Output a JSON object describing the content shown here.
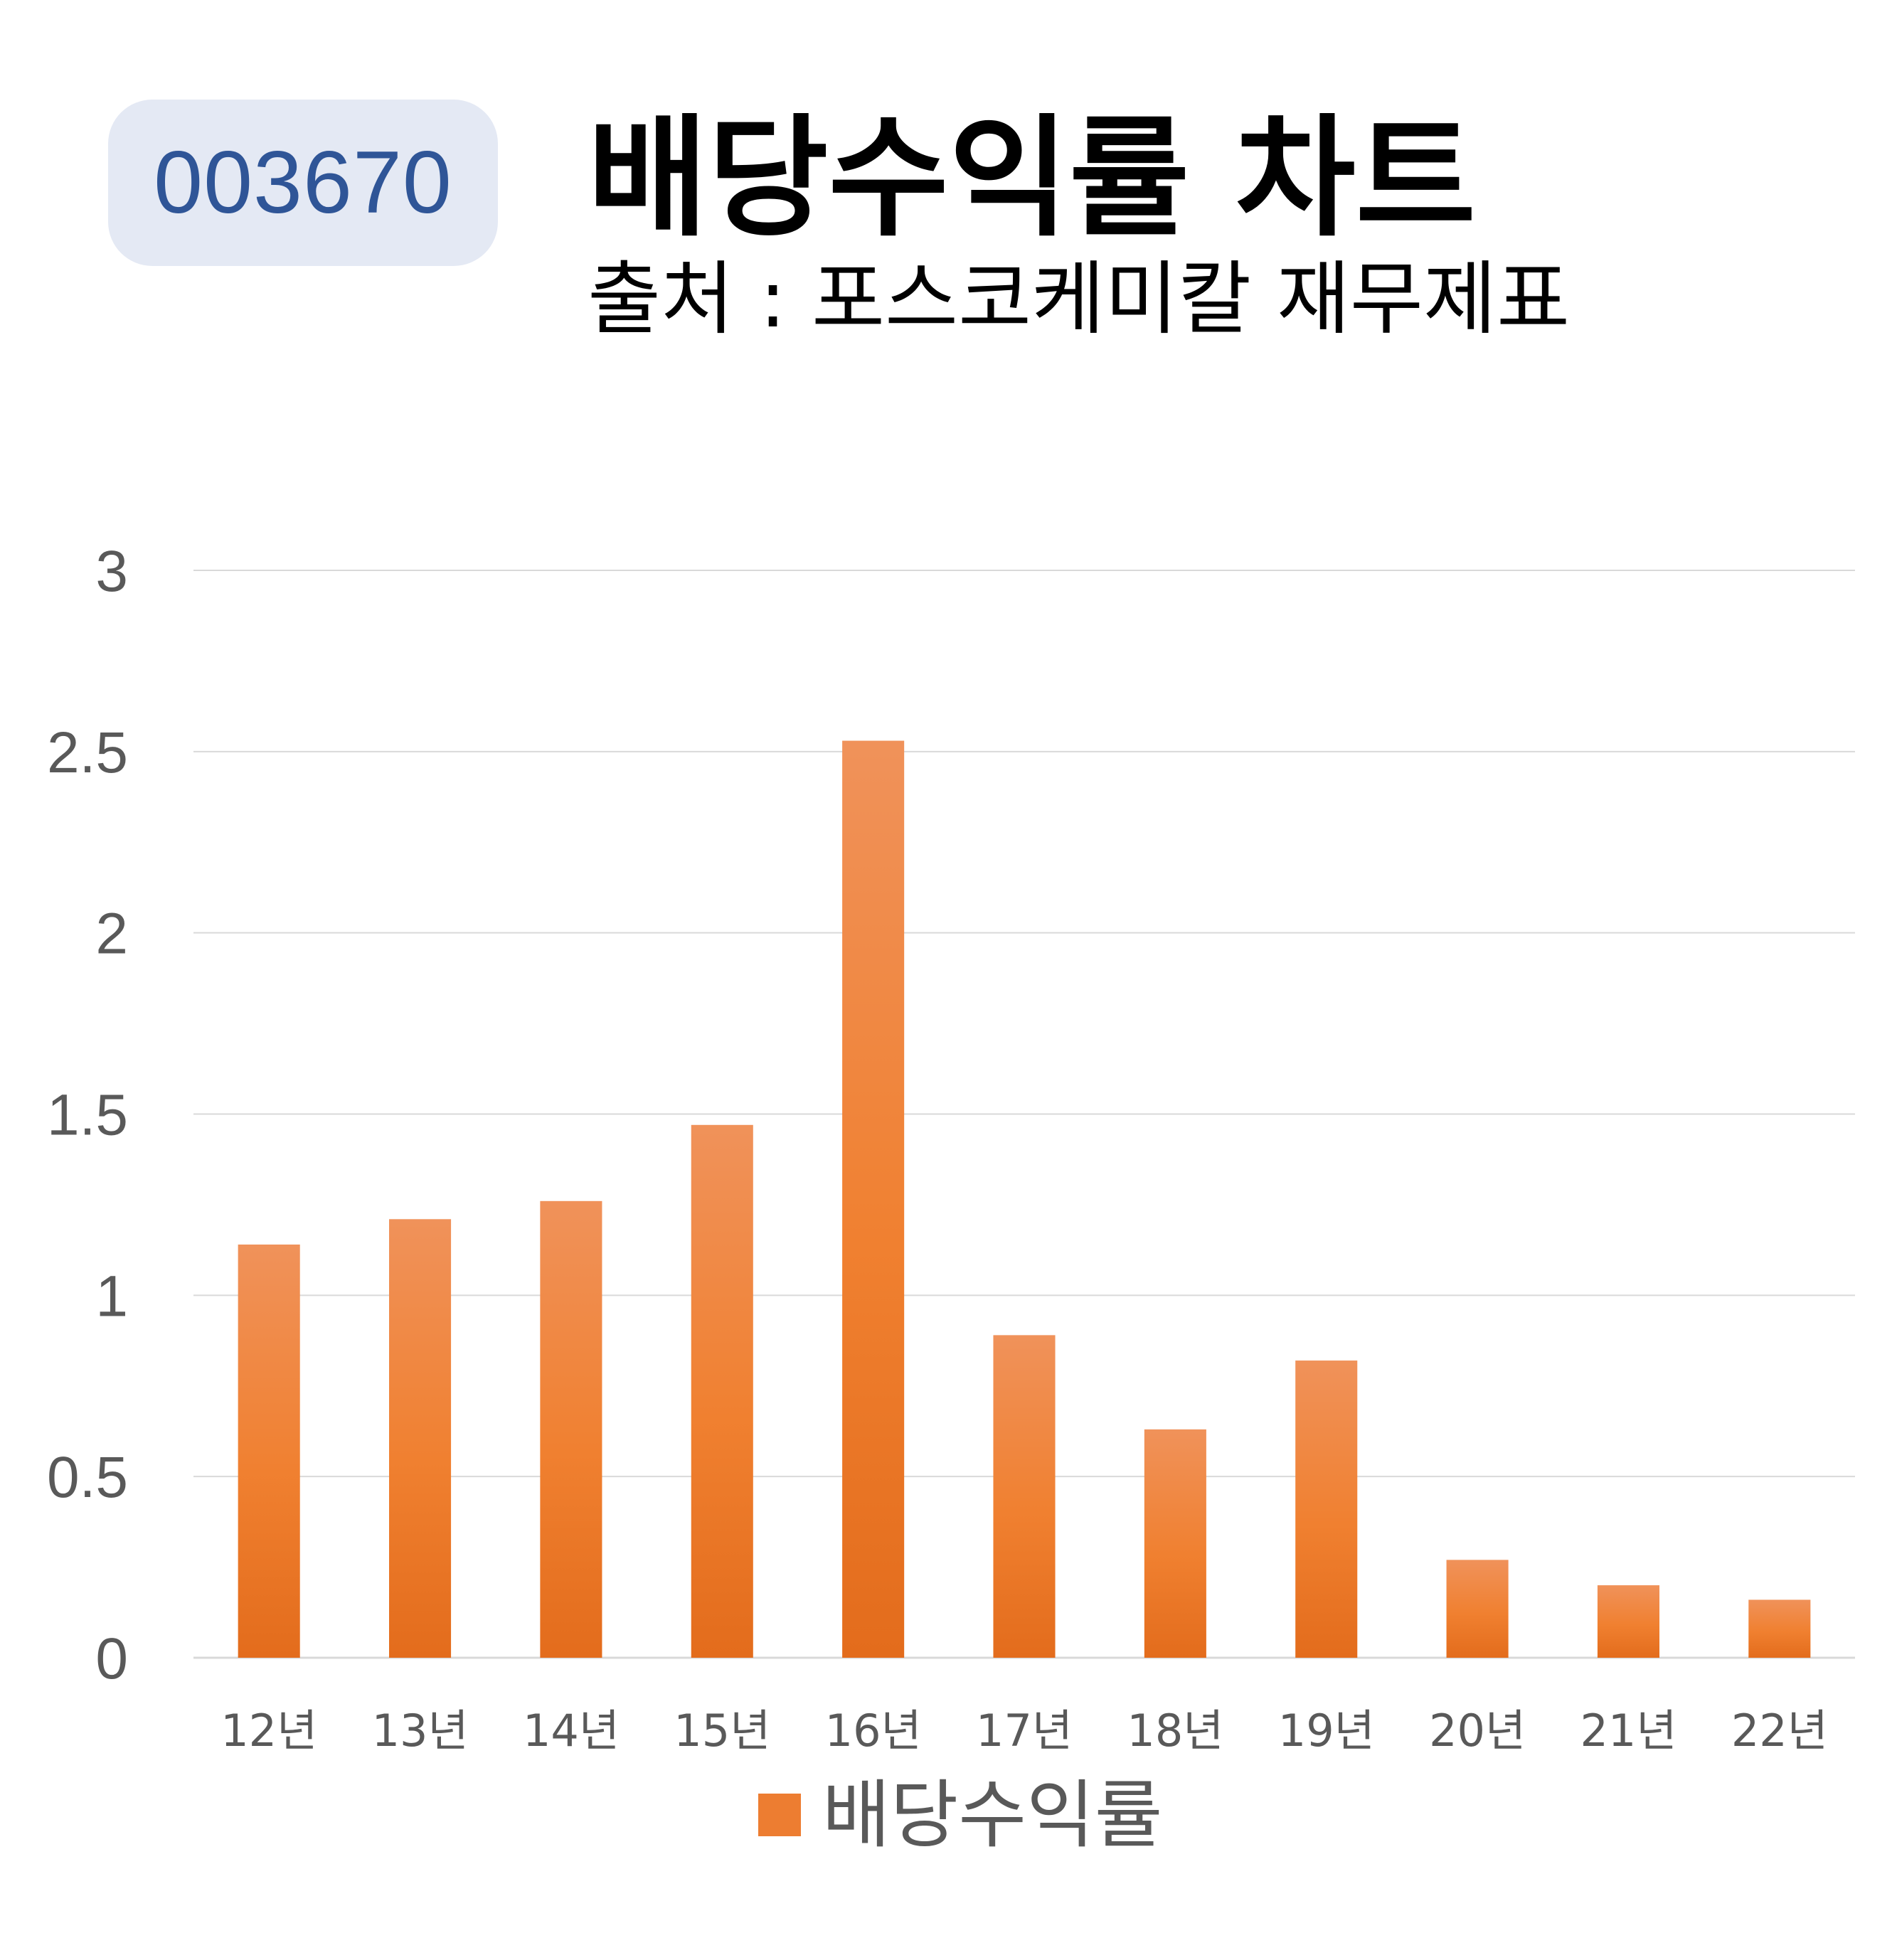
{
  "header": {
    "code": "003670",
    "title": "배당수익률 차트",
    "subtitle": "출처 : 포스코케미칼 재무제표"
  },
  "colors": {
    "bar": "#ed7d31",
    "bar_light": "#f0925a",
    "bar_dark": "#e36c1c",
    "grid": "#d9d9d9",
    "badge_bg": "#e4e9f4",
    "badge_text": "#2f5597"
  },
  "chart_data": {
    "type": "bar",
    "categories": [
      "12년",
      "13년",
      "14년",
      "15년",
      "16년",
      "17년",
      "18년",
      "19년",
      "20년",
      "21년",
      "22년"
    ],
    "series": [
      {
        "name": "배당수익률",
        "values": [
          1.14,
          1.21,
          1.26,
          1.47,
          2.53,
          0.89,
          0.63,
          0.82,
          0.27,
          0.2,
          0.16
        ]
      }
    ],
    "yticks": [
      "0",
      "0.5",
      "1",
      "1.5",
      "2",
      "2.5",
      "3"
    ],
    "ylim": [
      0,
      3
    ],
    "grid": true,
    "legend": "bottom"
  }
}
